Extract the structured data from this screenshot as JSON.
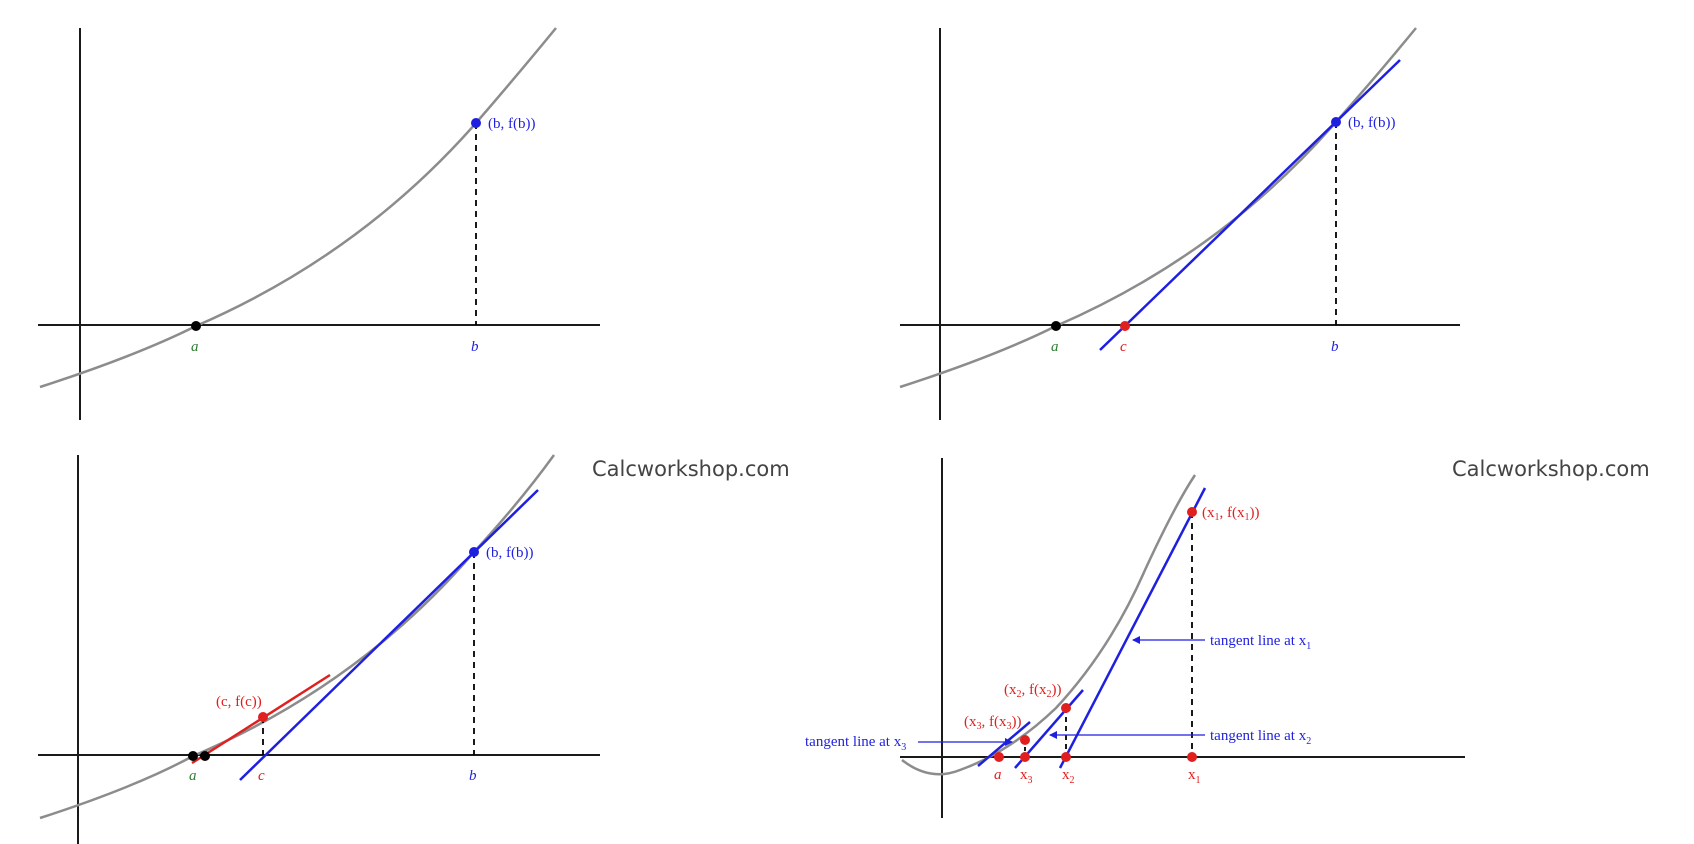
{
  "colors": {
    "axis": "#1a1a1a",
    "curve": "#8c8c8c",
    "blue": "#1f1fe0",
    "red": "#e01f1f",
    "green": "#2e7d32",
    "black": "#000000"
  },
  "watermark": {
    "left": "Calcworkshop.com",
    "right": "Calcworkshop.com"
  },
  "panel1": {
    "a": "a",
    "b": "b",
    "b_point": "(b, f(b))"
  },
  "panel2": {
    "a": "a",
    "b": "b",
    "c": "c",
    "b_point": "(b, f(b))"
  },
  "panel3": {
    "a": "a",
    "b": "b",
    "c": "c",
    "b_point": "(b, f(b))",
    "c_point": "(c, f(c))"
  },
  "panel4": {
    "a": "a",
    "x1": {
      "base": "x",
      "sub": "1"
    },
    "x2": {
      "base": "x",
      "sub": "2"
    },
    "x3": {
      "base": "x",
      "sub": "3"
    },
    "p1": {
      "open": "(x",
      "sub1": "1",
      "mid": ", f(x",
      "sub2": "1",
      "close": "))"
    },
    "p2": {
      "open": "(x",
      "sub1": "2",
      "mid": ", f(x",
      "sub2": "2",
      "close": "))"
    },
    "p3": {
      "open": "(x",
      "sub1": "3",
      "mid": ", f(x",
      "sub2": "3",
      "close": "))"
    },
    "tan1": {
      "text": "tangent line at x",
      "sub": "1"
    },
    "tan2": {
      "text": "tangent line at x",
      "sub": "2"
    },
    "tan3": {
      "text": "tangent line at x",
      "sub": "3"
    }
  }
}
